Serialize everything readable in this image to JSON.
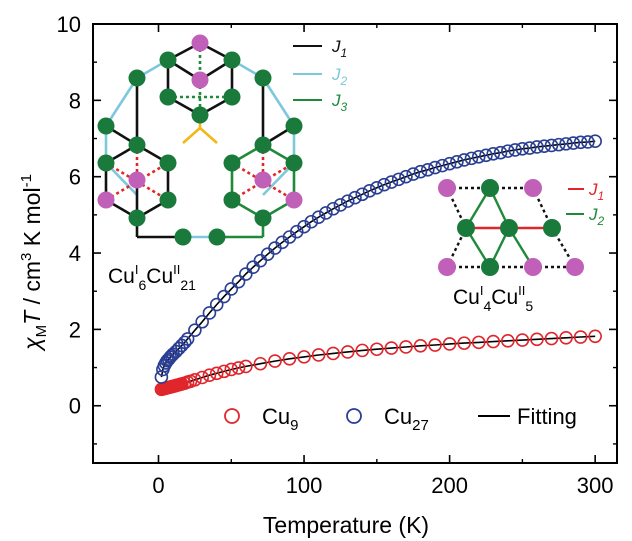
{
  "chart_data": {
    "type": "scatter",
    "xlabel": "Temperature (K)",
    "ylabel_parts": [
      "χ",
      "M",
      "T",
      " / cm",
      "3",
      " K mol",
      "-1"
    ],
    "xlim": [
      -45,
      315
    ],
    "ylim": [
      -1.5,
      10
    ],
    "x_ticks": [
      "0",
      "100",
      "200",
      "300"
    ],
    "y_ticks": [
      "0",
      "2",
      "4",
      "6",
      "8",
      "10"
    ],
    "series": [
      {
        "name": "Cu9",
        "name_main": "Cu",
        "name_sub": "9",
        "marker": "open-circle",
        "color": "#e0262b",
        "x": [
          2,
          3,
          4,
          5,
          6,
          7,
          8,
          9,
          10,
          11,
          12,
          13,
          14,
          15,
          16,
          18,
          20,
          22,
          25,
          30,
          35,
          40,
          45,
          50,
          55,
          60,
          70,
          80,
          90,
          100,
          110,
          120,
          130,
          140,
          150,
          160,
          170,
          180,
          190,
          200,
          210,
          220,
          230,
          240,
          250,
          260,
          270,
          280,
          290,
          300
        ],
        "y": [
          0.43,
          0.44,
          0.45,
          0.46,
          0.47,
          0.48,
          0.49,
          0.5,
          0.51,
          0.52,
          0.53,
          0.54,
          0.55,
          0.56,
          0.57,
          0.59,
          0.62,
          0.64,
          0.68,
          0.74,
          0.8,
          0.85,
          0.9,
          0.95,
          0.99,
          1.03,
          1.1,
          1.17,
          1.23,
          1.28,
          1.33,
          1.37,
          1.41,
          1.45,
          1.48,
          1.51,
          1.54,
          1.57,
          1.59,
          1.62,
          1.64,
          1.66,
          1.68,
          1.7,
          1.72,
          1.74,
          1.76,
          1.78,
          1.8,
          1.82
        ]
      },
      {
        "name": "Cu27",
        "name_main": "Cu",
        "name_sub": "27",
        "marker": "open-circle",
        "color": "#2a3f93",
        "x": [
          2,
          3,
          4,
          5,
          6,
          7,
          8,
          9,
          10,
          12,
          14,
          16,
          18,
          20,
          25,
          30,
          35,
          40,
          45,
          50,
          55,
          60,
          65,
          70,
          75,
          80,
          85,
          90,
          95,
          100,
          105,
          110,
          115,
          120,
          125,
          130,
          135,
          140,
          145,
          150,
          155,
          160,
          165,
          170,
          175,
          180,
          185,
          190,
          195,
          200,
          205,
          210,
          215,
          220,
          225,
          230,
          235,
          240,
          245,
          250,
          255,
          260,
          265,
          270,
          275,
          280,
          285,
          290,
          295,
          300
        ],
        "y": [
          0.75,
          0.95,
          1.05,
          1.12,
          1.18,
          1.22,
          1.27,
          1.31,
          1.35,
          1.42,
          1.5,
          1.58,
          1.66,
          1.75,
          1.98,
          2.2,
          2.43,
          2.65,
          2.86,
          3.06,
          3.25,
          3.45,
          3.63,
          3.8,
          3.97,
          4.13,
          4.28,
          4.42,
          4.56,
          4.69,
          4.82,
          4.94,
          5.05,
          5.16,
          5.26,
          5.36,
          5.45,
          5.54,
          5.63,
          5.71,
          5.79,
          5.86,
          5.93,
          6.0,
          6.07,
          6.13,
          6.18,
          6.24,
          6.29,
          6.34,
          6.39,
          6.44,
          6.48,
          6.52,
          6.56,
          6.6,
          6.63,
          6.67,
          6.7,
          6.73,
          6.75,
          6.78,
          6.8,
          6.82,
          6.84,
          6.86,
          6.88,
          6.9,
          6.91,
          6.93
        ]
      },
      {
        "name": "Fitting",
        "marker": "line",
        "color": "#000000"
      }
    ],
    "insets": [
      {
        "label_parts": [
          "Cu",
          "I",
          "6",
          "Cu",
          "II",
          "21"
        ],
        "key": [
          {
            "text_main": "J",
            "text_sub": "1",
            "color": "#111111"
          },
          {
            "text_main": "J",
            "text_sub": "2",
            "color": "#7ec8dc"
          },
          {
            "text_main": "J",
            "text_sub": "3",
            "color": "#1e8a3a"
          }
        ]
      },
      {
        "label_parts": [
          "Cu",
          "I",
          "4",
          "Cu",
          "II",
          "5"
        ],
        "key": [
          {
            "text_main": "J",
            "text_sub": "1",
            "color": "#e0262b"
          },
          {
            "text_main": "J",
            "text_sub": "2",
            "color": "#1e8a3a"
          }
        ]
      }
    ],
    "colors": {
      "green_atom": "#1a7a3c",
      "magenta_atom": "#c060b8",
      "yellow_bond": "#f2b81a"
    },
    "grid": false,
    "legend_position": "bottom-right"
  }
}
